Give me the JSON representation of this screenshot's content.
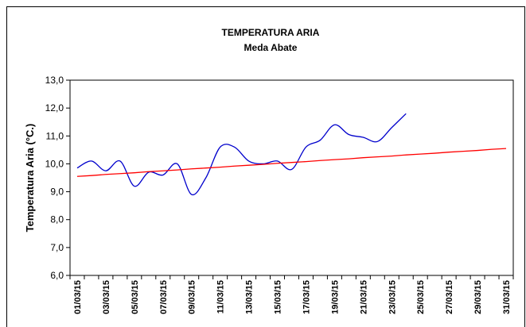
{
  "chart_data": {
    "type": "line",
    "title": "TEMPERATURA ARIA",
    "subtitle": "Meda Abate",
    "y_label": "Temperatura Aria (°C.)",
    "categories": [
      "01/03/15",
      null,
      "03/03/15",
      null,
      "05/03/15",
      null,
      "07/03/15",
      null,
      "09/03/15",
      null,
      "11/03/15",
      null,
      "13/03/15",
      null,
      "15/03/15",
      null,
      "17/03/15",
      null,
      "19/03/15",
      null,
      "21/03/15",
      null,
      "23/03/15",
      null,
      "25/03/15",
      null,
      "27/03/15",
      null,
      "29/03/15",
      null,
      "31/03/15"
    ],
    "series": [
      {
        "color": "#0000cc",
        "smooth": true,
        "values": [
          9.85,
          10.1,
          9.75,
          10.1,
          9.2,
          9.7,
          9.6,
          10.0,
          8.9,
          9.5,
          10.6,
          10.6,
          10.1,
          10.0,
          10.1,
          9.8,
          10.6,
          10.85,
          11.4,
          11.05,
          10.95,
          10.8,
          11.3,
          11.8,
          null,
          null,
          null,
          null,
          null,
          null,
          null
        ]
      },
      {
        "color": "#ff0000",
        "smooth": false,
        "values": [
          9.55,
          9.58,
          9.62,
          9.65,
          9.68,
          9.72,
          9.75,
          9.78,
          9.82,
          9.85,
          9.88,
          9.92,
          9.95,
          9.98,
          10.02,
          10.05,
          10.08,
          10.12,
          10.15,
          10.18,
          10.22,
          10.25,
          10.28,
          10.32,
          10.35,
          10.38,
          10.42,
          10.45,
          10.48,
          10.52,
          10.55
        ]
      }
    ],
    "ylim": [
      6,
      13
    ],
    "yticks": [
      {
        "value": 6,
        "label": "6,0"
      },
      {
        "value": 7,
        "label": "7,0"
      },
      {
        "value": 8,
        "label": "8,0"
      },
      {
        "value": 9,
        "label": "9,0"
      },
      {
        "value": 10,
        "label": "10,0"
      },
      {
        "value": 11,
        "label": "11,0"
      },
      {
        "value": 12,
        "label": "12,0"
      },
      {
        "value": 13,
        "label": "13,0"
      }
    ],
    "grid": false
  }
}
